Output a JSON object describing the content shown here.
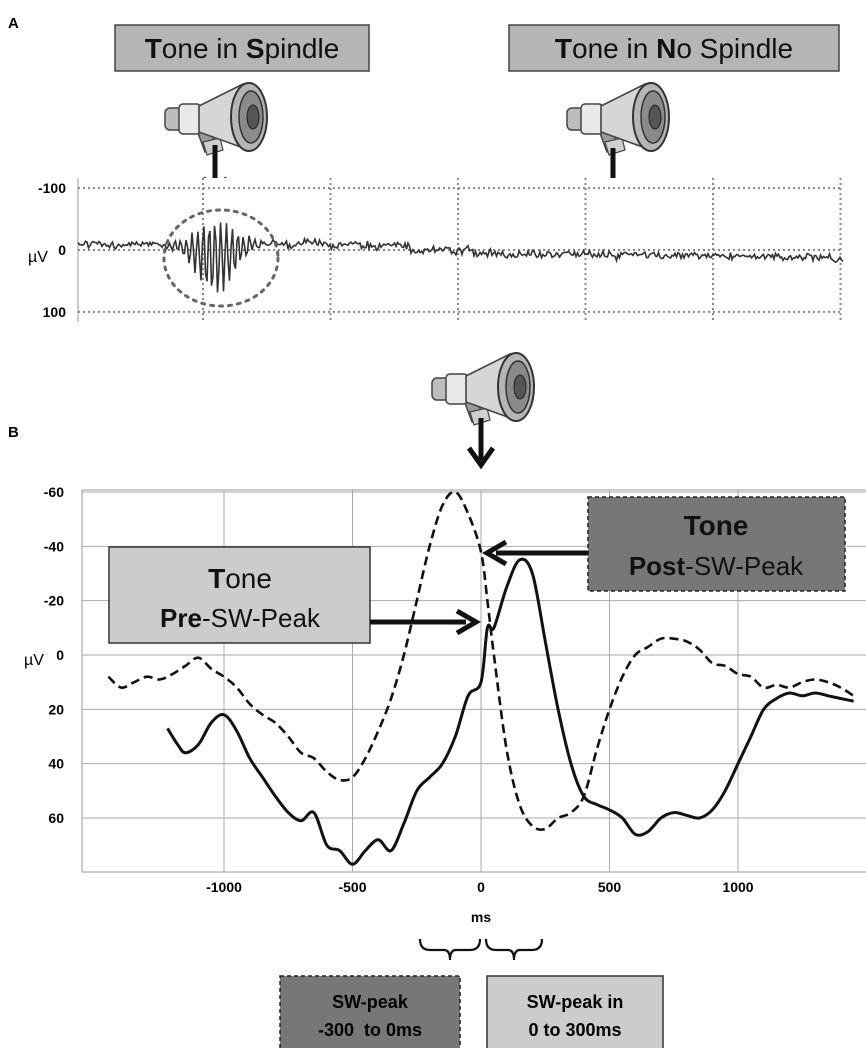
{
  "panel_a": {
    "letter": "A",
    "labels": {
      "spindle": {
        "bold1": "T",
        "text1": "one in ",
        "bold2": "S",
        "text2": "pindle"
      },
      "no_spindle": {
        "bold1": "T",
        "text1": "one in ",
        "bold2": "N",
        "text2": "o Spindle"
      }
    },
    "icon": "megaphone-icon"
  },
  "panel_b": {
    "letter": "B",
    "pre_label": {
      "line1_bold": "T",
      "line1_text": "one",
      "line2_bold": "Pre",
      "line2_text": "-SW-Peak"
    },
    "post_label": {
      "line1": "Tone",
      "line2_bold": "Post",
      "line2_text": "-SW-Peak"
    },
    "bottom_labels": {
      "dark": {
        "line1": "SW-peak",
        "line2": "-300  to 0ms"
      },
      "light": {
        "line1": "SW-peak in",
        "line2": "0 to 300ms"
      }
    }
  },
  "colors": {
    "box_dark": "#777777",
    "box_light": "#cccccc",
    "box_mid": "#b0b0b0",
    "trace": "#111111"
  },
  "chart_data": [
    {
      "type": "line",
      "title": "",
      "ylabel": "µV",
      "xlabel": "",
      "y_ticks": [
        -100,
        0,
        100
      ],
      "y_tick_labels": [
        "-100",
        "0",
        "100"
      ],
      "y_inverted": true,
      "ylim": [
        -110,
        110
      ],
      "grid": true,
      "series": [
        {
          "name": "",
          "description_only": false
        }
      ]
    },
    {
      "type": "line",
      "title": "",
      "xlabel": "ms",
      "ylabel": "µV",
      "xlim": [
        -1450,
        1450
      ],
      "ylim": [
        -60,
        85
      ],
      "y_inverted": true,
      "x_ticks": [
        -1000,
        -500,
        0,
        500,
        1000
      ],
      "x_tick_labels": [
        "-1000",
        "-500",
        "0",
        "500",
        "1000"
      ],
      "y_ticks": [
        -60,
        -40,
        -20,
        0,
        20,
        40,
        60
      ],
      "y_tick_labels": [
        "-60",
        "-40",
        "-20",
        "0",
        "20",
        "40",
        "60"
      ],
      "grid": true,
      "series": [
        {
          "style": "dashed",
          "x": [
            -1450,
            -1400,
            -1350,
            -1300,
            -1250,
            -1200,
            -1150,
            -1100,
            -1050,
            -1000,
            -950,
            -900,
            -850,
            -800,
            -750,
            -700,
            -650,
            -600,
            -550,
            -500,
            -450,
            -400,
            -350,
            -300,
            -250,
            -200,
            -150,
            -100,
            -50,
            0,
            25,
            50,
            100,
            150,
            200,
            250,
            300,
            350,
            400,
            450,
            500,
            550,
            600,
            650,
            700,
            750,
            800,
            850,
            900,
            950,
            1000,
            1050,
            1100,
            1150,
            1200,
            1250,
            1300,
            1350,
            1400,
            1450
          ],
          "y": [
            8,
            12,
            10,
            8,
            9,
            7,
            4,
            1,
            5,
            8,
            12,
            18,
            22,
            25,
            30,
            36,
            38,
            43,
            46,
            45,
            38,
            28,
            16,
            0,
            -20,
            -40,
            -55,
            -60,
            -52,
            -38,
            -20,
            0,
            35,
            55,
            63,
            64,
            60,
            58,
            52,
            35,
            20,
            8,
            0,
            -3,
            -6,
            -6,
            -5,
            -2,
            3,
            4,
            7,
            8,
            12,
            11,
            12,
            10,
            9,
            10,
            12,
            15
          ]
        },
        {
          "style": "solid",
          "x": [
            -1220,
            -1180,
            -1150,
            -1100,
            -1050,
            -1000,
            -950,
            -900,
            -850,
            -800,
            -750,
            -700,
            -650,
            -600,
            -550,
            -500,
            -450,
            -400,
            -350,
            -300,
            -250,
            -200,
            -150,
            -100,
            -50,
            0,
            25,
            50,
            100,
            150,
            200,
            250,
            300,
            350,
            400,
            450,
            500,
            550,
            600,
            650,
            700,
            750,
            800,
            850,
            900,
            950,
            1000,
            1050,
            1100,
            1150,
            1200,
            1250,
            1300,
            1350,
            1400,
            1450
          ],
          "y": [
            27,
            33,
            36,
            33,
            25,
            22,
            28,
            38,
            45,
            52,
            58,
            61,
            58,
            70,
            72,
            77,
            72,
            68,
            72,
            62,
            50,
            45,
            40,
            30,
            15,
            10,
            -10,
            -10,
            -25,
            -35,
            -30,
            -5,
            20,
            40,
            52,
            55,
            57,
            60,
            66,
            65,
            60,
            58,
            59,
            60,
            57,
            50,
            40,
            30,
            20,
            16,
            14,
            15,
            14,
            15,
            16,
            17
          ]
        }
      ]
    }
  ]
}
